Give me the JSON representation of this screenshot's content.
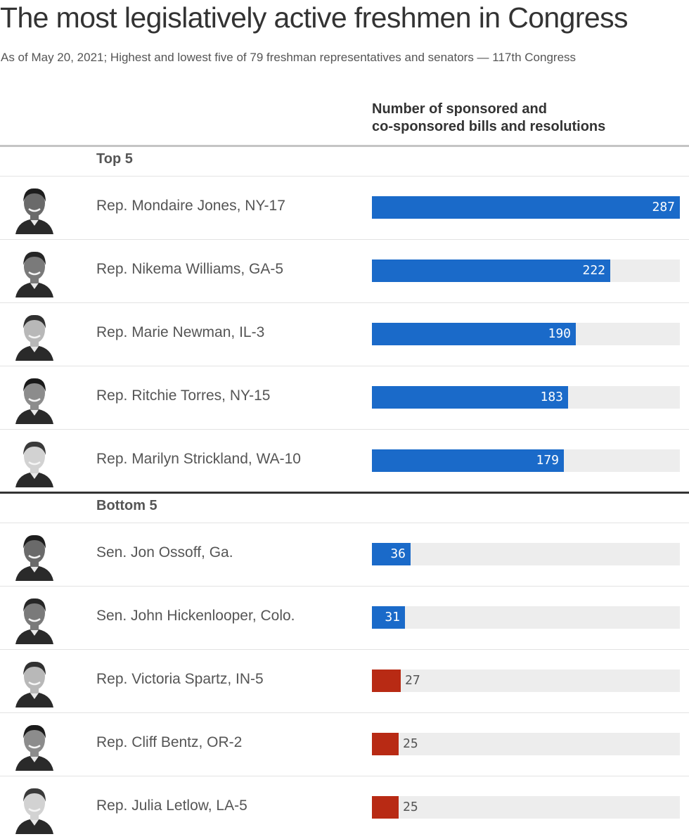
{
  "title": "The most legislatively active freshmen in Congress",
  "subtitle": "As of May 20, 2021; Highest and lowest five of 79 freshman representatives and senators — 117th Congress",
  "column_header": {
    "line1": "Number of sponsored and",
    "line2": "co-sponsored bills and resolutions"
  },
  "colors": {
    "top_bar": "#1a6ac9",
    "bottom_bar": "#b82a14",
    "track": "#ededed"
  },
  "chart_data": {
    "type": "bar",
    "orientation": "horizontal",
    "xlim": [
      0,
      287
    ],
    "groups": [
      {
        "label": "Top 5",
        "rows": [
          {
            "name": "Rep. Mondaire Jones, NY-17",
            "value": 287,
            "color": "#1a6ac9",
            "avatar": "portrait-icon"
          },
          {
            "name": "Rep. Nikema Williams, GA-5",
            "value": 222,
            "color": "#1a6ac9",
            "avatar": "portrait-icon"
          },
          {
            "name": "Rep. Marie Newman, IL-3",
            "value": 190,
            "color": "#1a6ac9",
            "avatar": "portrait-icon"
          },
          {
            "name": "Rep. Ritchie Torres, NY-15",
            "value": 183,
            "color": "#1a6ac9",
            "avatar": "portrait-icon"
          },
          {
            "name": "Rep. Marilyn Strickland, WA-10",
            "value": 179,
            "color": "#1a6ac9",
            "avatar": "portrait-icon"
          }
        ]
      },
      {
        "label": "Bottom 5",
        "rows": [
          {
            "name": "Sen. Jon Ossoff, Ga.",
            "value": 36,
            "color": "#1a6ac9",
            "avatar": "portrait-icon"
          },
          {
            "name": "Sen. John Hickenlooper, Colo.",
            "value": 31,
            "color": "#1a6ac9",
            "avatar": "portrait-icon"
          },
          {
            "name": "Rep. Victoria Spartz, IN-5",
            "value": 27,
            "color": "#b82a14",
            "avatar": "portrait-icon"
          },
          {
            "name": "Rep. Cliff Bentz, OR-2",
            "value": 25,
            "color": "#b82a14",
            "avatar": "portrait-icon"
          },
          {
            "name": "Rep. Julia Letlow, LA-5",
            "value": 25,
            "color": "#b82a14",
            "avatar": "portrait-icon"
          }
        ]
      }
    ]
  }
}
